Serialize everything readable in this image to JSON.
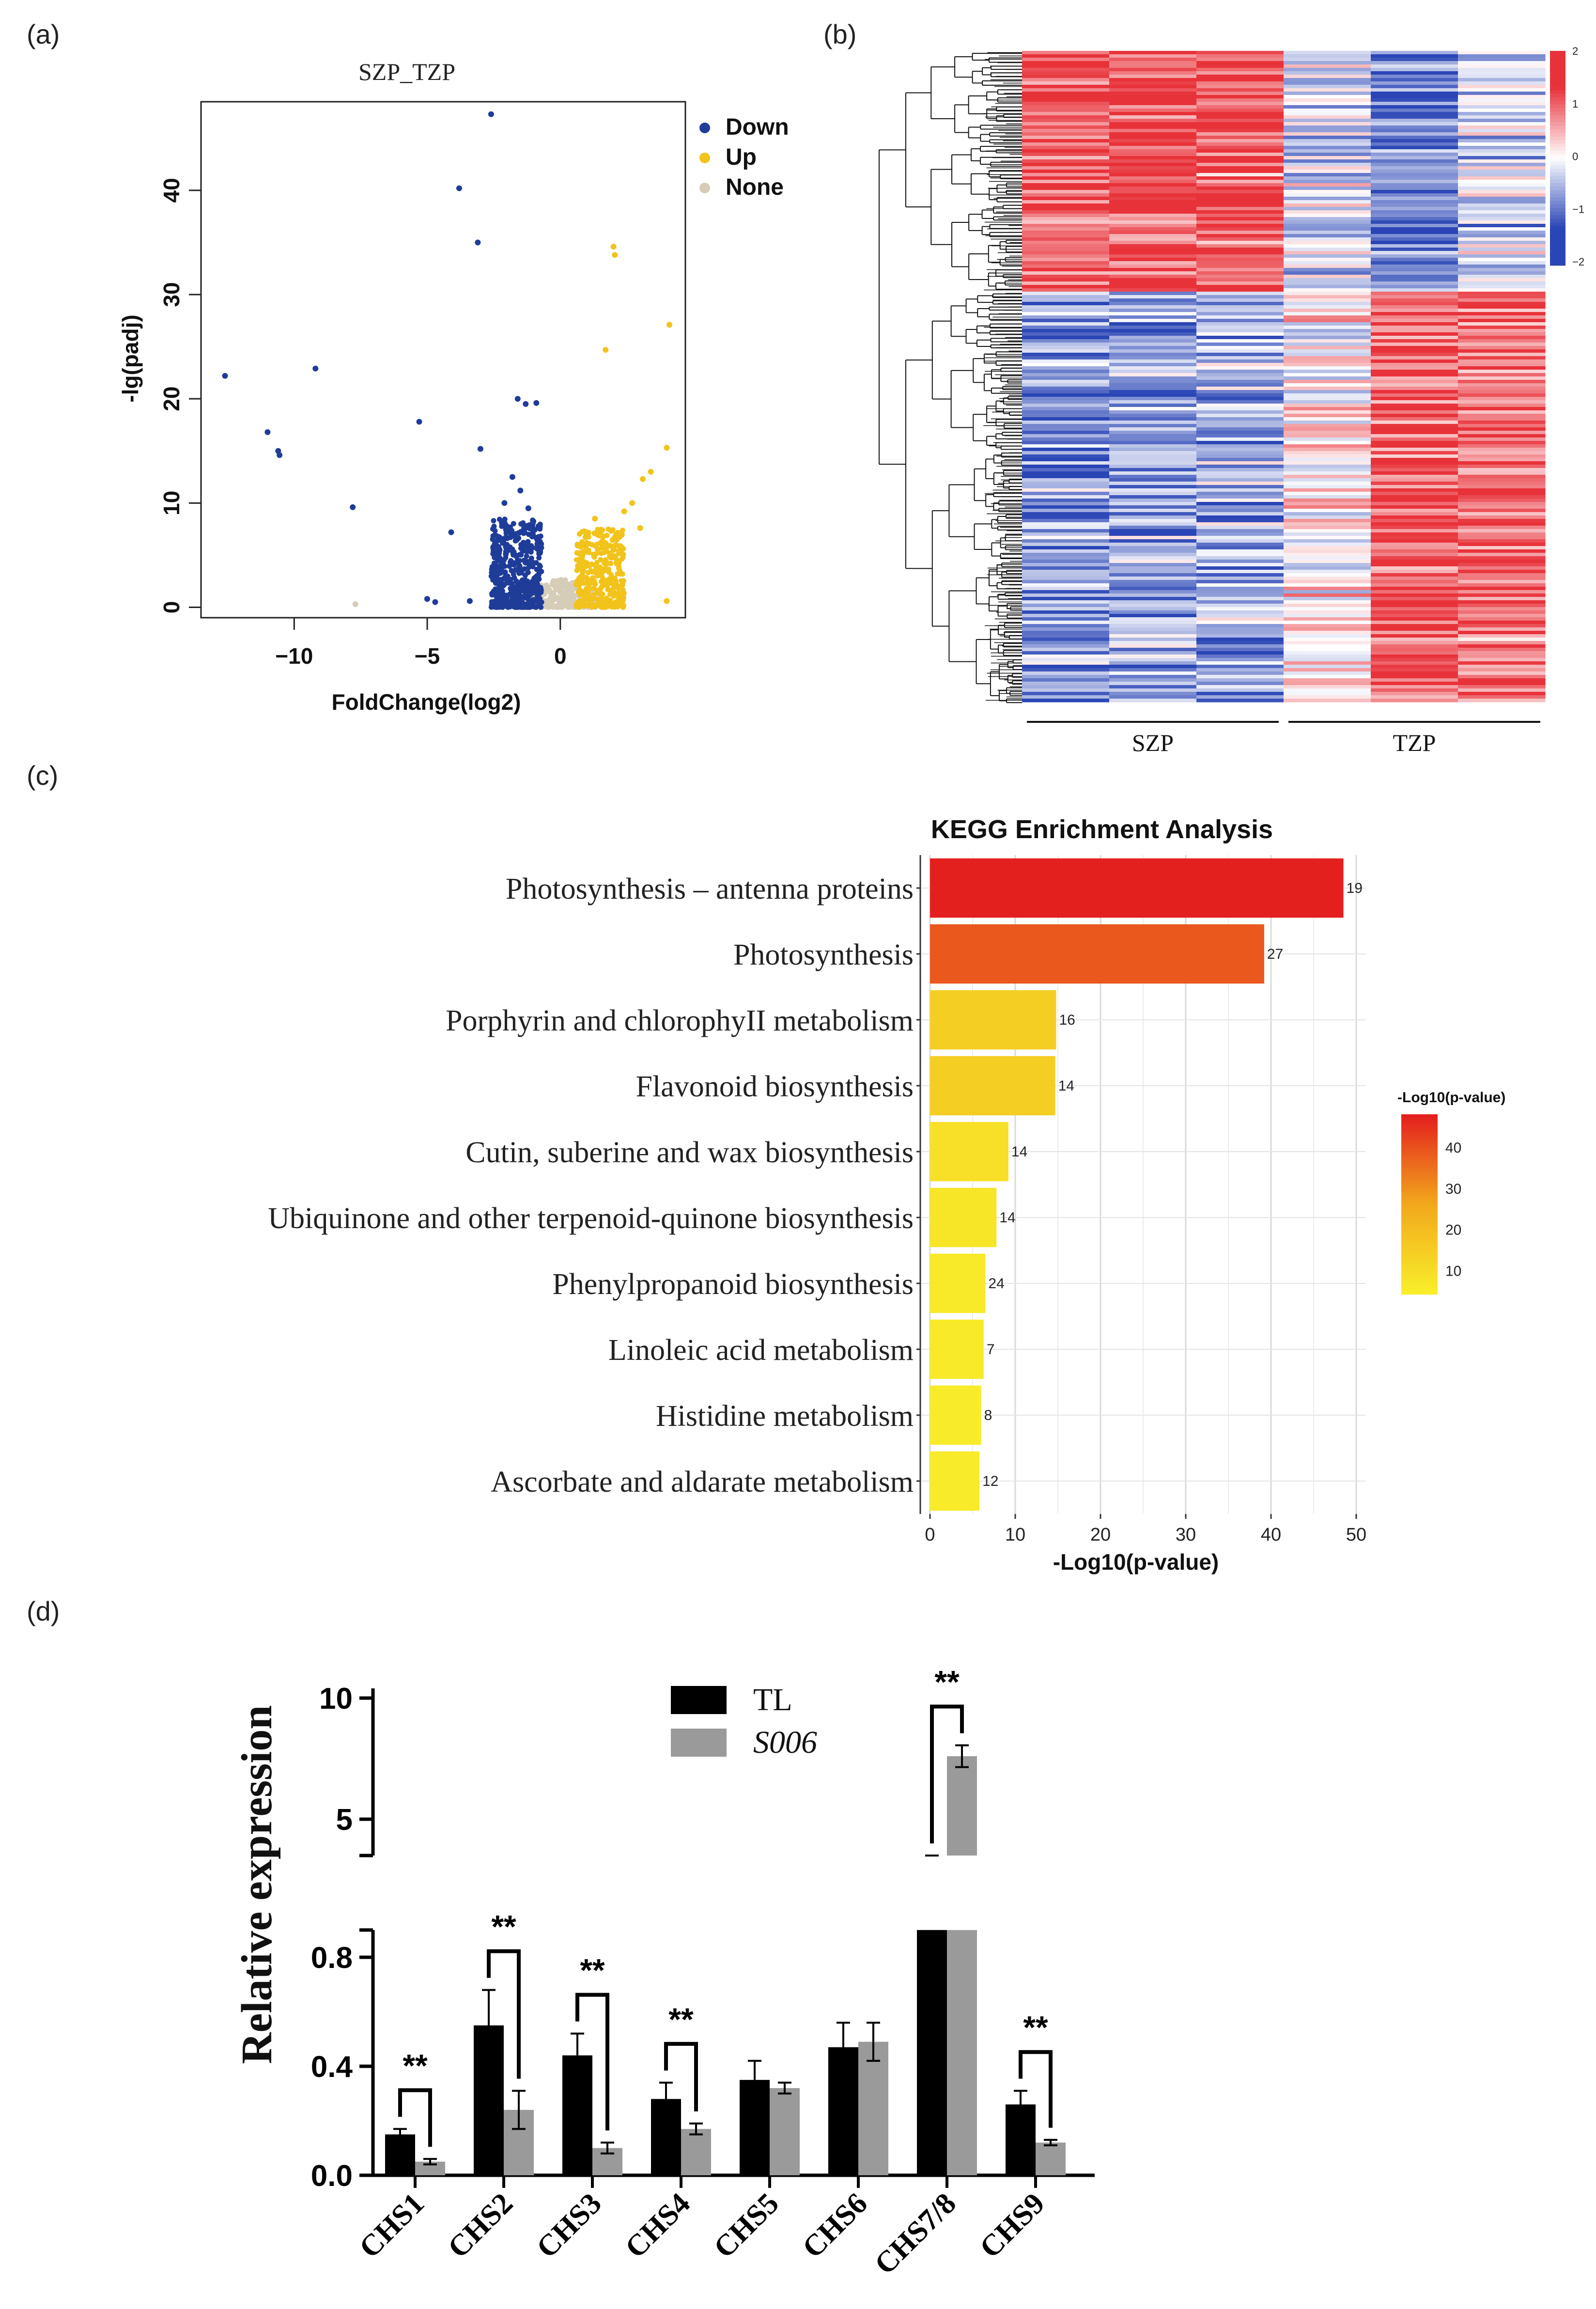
{
  "panels": {
    "a": "(a)",
    "b": "(b)",
    "c": "(c)",
    "d": "(d)"
  },
  "colors": {
    "down": "#1f3c99",
    "up": "#f2c31b",
    "none": "#d6cdb8",
    "heat_low": "#2a45b5",
    "heat_mid": "#ffffff",
    "heat_high": "#e8323a",
    "tl": "#000000",
    "s006": "#9a9a9a"
  },
  "chart_data": [
    {
      "id": "volcano",
      "type": "scatter",
      "title": "SZP_TZP",
      "xlabel": "FoldChange(log2)",
      "ylabel": "-lg(padj)",
      "xlim": [
        -13.5,
        4.7
      ],
      "ylim": [
        -1,
        48.5
      ],
      "xticks": [
        -10,
        -5,
        0
      ],
      "yticks": [
        0,
        10,
        20,
        30,
        40
      ],
      "legend": {
        "placement": "right",
        "entries": [
          "Down",
          "Up",
          "None"
        ]
      },
      "series": [
        {
          "name": "Down",
          "points": [
            [
              -2.6,
              47.3
            ],
            [
              -3.8,
              40.2
            ],
            [
              -3.1,
              35.0
            ],
            [
              -12.6,
              22.2
            ],
            [
              -9.2,
              22.9
            ],
            [
              -11.0,
              16.8
            ],
            [
              -10.6,
              15.0
            ],
            [
              -10.55,
              14.6
            ],
            [
              -5.3,
              17.8
            ],
            [
              -3.0,
              15.2
            ],
            [
              -1.6,
              20.0
            ],
            [
              -1.3,
              19.5
            ],
            [
              -0.9,
              19.6
            ],
            [
              -7.8,
              9.6
            ],
            [
              -4.1,
              7.2
            ],
            [
              -5.0,
              0.8
            ],
            [
              -4.7,
              0.5
            ],
            [
              -3.4,
              0.6
            ],
            [
              -1.8,
              12.5
            ],
            [
              -1.5,
              11.2
            ],
            [
              -2.1,
              10.0
            ],
            [
              -1.2,
              9.5
            ]
          ]
        },
        {
          "name": "Up",
          "points": [
            [
              2.0,
              34.6
            ],
            [
              2.05,
              33.8
            ],
            [
              4.1,
              27.1
            ],
            [
              1.7,
              24.7
            ],
            [
              4.0,
              15.3
            ],
            [
              3.4,
              13.0
            ],
            [
              3.1,
              12.3
            ],
            [
              2.7,
              10.0
            ],
            [
              2.4,
              9.2
            ],
            [
              3.0,
              7.6
            ],
            [
              4.0,
              0.6
            ],
            [
              1.3,
              8.5
            ],
            [
              1.0,
              7.2
            ]
          ]
        },
        {
          "name": "None",
          "points": [
            [
              -7.7,
              0.3
            ]
          ]
        }
      ],
      "clusters": [
        {
          "series": "Down",
          "x_range": [
            -2.6,
            -0.7
          ],
          "y_max": 8.5,
          "count": 520
        },
        {
          "series": "Up",
          "x_range": [
            0.6,
            2.4
          ],
          "y_max": 7.5,
          "count": 340
        },
        {
          "series": "None",
          "x_range": [
            -1.9,
            1.4
          ],
          "y_max": 2.8,
          "count": 380
        }
      ]
    },
    {
      "id": "heatmap",
      "type": "heatmap",
      "groups": [
        {
          "label": "SZP",
          "columns": 3
        },
        {
          "label": "TZP",
          "columns": 3
        }
      ],
      "colorbar": {
        "range": [
          -2,
          2
        ],
        "ticks": [
          2,
          1,
          0,
          -1,
          -2
        ]
      },
      "row_blocks": [
        {
          "fraction": 0.37,
          "pattern": [
            1.3,
            1.4,
            1.3,
            -0.2,
            -1.2,
            -0.4
          ]
        },
        {
          "fraction": 0.63,
          "pattern": [
            -0.9,
            -0.8,
            -0.7,
            0.2,
            1.3,
            1.1
          ]
        }
      ]
    },
    {
      "id": "kegg",
      "type": "bar",
      "orientation": "horizontal",
      "title": "KEGG Enrichment Analysis",
      "xlabel": "-Log10(p-value)",
      "xlim": [
        0,
        50
      ],
      "xticks": [
        0,
        10,
        20,
        30,
        40,
        50
      ],
      "grid": true,
      "categories": [
        "Photosynthesis – antenna proteins",
        "Photosynthesis",
        "Porphyrin and chlorophyII metabolism",
        "Flavonoid biosynthesis",
        "Cutin, suberine and wax biosynthesis",
        "Ubiquinone and other terpenoid-quinone biosynthesis",
        "Phenylpropanoid biosynthesis",
        "Linoleic acid metabolism",
        "Histidine metabolism",
        "Ascorbate and aldarate metabolism"
      ],
      "values": [
        48.5,
        39.2,
        14.8,
        14.7,
        9.2,
        7.8,
        6.5,
        6.3,
        6.0,
        5.8
      ],
      "labels": [
        "19",
        "27",
        "16",
        "14",
        "14",
        "14",
        "24",
        "7",
        "8",
        "12"
      ],
      "colorbar": {
        "title": "-Log10(p-value)",
        "ticks": [
          40,
          30,
          20,
          10
        ],
        "range": [
          5,
          48
        ]
      }
    },
    {
      "id": "qpcr",
      "type": "bar",
      "ylabel": "Relative expression",
      "categories": [
        "CHS1",
        "CHS2",
        "CHS3",
        "CHS4",
        "CHS5",
        "CHS6",
        "CHS7/8",
        "CHS9"
      ],
      "yticks": [
        "0.0",
        "0.4",
        "0.8",
        "5",
        "10"
      ],
      "axis_break": {
        "lower": [
          0,
          0.9
        ],
        "upper": [
          3.5,
          10.4
        ]
      },
      "legend": {
        "placement": "top-center",
        "entries": [
          "TL",
          "S006"
        ]
      },
      "series": [
        {
          "name": "TL",
          "values": [
            0.15,
            0.55,
            0.44,
            0.28,
            0.35,
            0.47,
            1.4,
            0.26
          ],
          "errors": [
            0.02,
            0.13,
            0.08,
            0.06,
            0.07,
            0.09,
            0.25,
            0.05
          ]
        },
        {
          "name": "S006",
          "values": [
            0.05,
            0.24,
            0.1,
            0.17,
            0.32,
            0.49,
            7.6,
            0.12
          ],
          "errors": [
            0.01,
            0.07,
            0.02,
            0.02,
            0.02,
            0.07,
            0.45,
            0.01
          ]
        }
      ],
      "significance": {
        "label": "**",
        "categories": [
          "CHS1",
          "CHS2",
          "CHS3",
          "CHS4",
          "CHS7/8",
          "CHS9"
        ]
      }
    }
  ]
}
